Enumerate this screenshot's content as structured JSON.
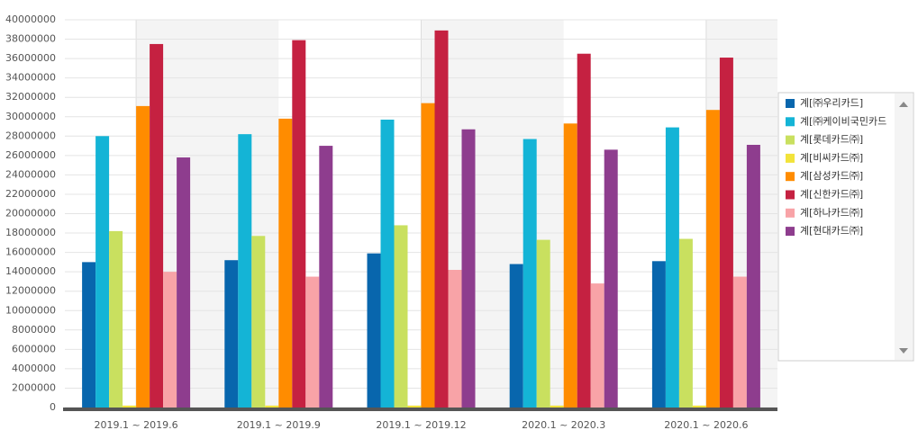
{
  "chart_data": {
    "type": "bar",
    "categories": [
      "2019.1 ~ 2019.6",
      "2019.1 ~ 2019.9",
      "2019.1 ~ 2019.12",
      "2020.1 ~ 2020.3",
      "2020.1 ~ 2020.6"
    ],
    "series": [
      {
        "name": "계[㈜우리카드]",
        "color": "#0866ad",
        "values": [
          15000000,
          15200000,
          15900000,
          14800000,
          15100000
        ]
      },
      {
        "name": "계[㈜케이비국민카드",
        "color": "#14b4d6",
        "values": [
          28000000,
          28200000,
          29700000,
          27700000,
          28900000
        ]
      },
      {
        "name": "계[롯데카드㈜]",
        "color": "#c9e05f",
        "values": [
          18200000,
          17700000,
          18800000,
          17300000,
          17400000
        ]
      },
      {
        "name": "계[비씨카드㈜]",
        "color": "#f2e33a",
        "values": [
          200000,
          200000,
          200000,
          200000,
          200000
        ]
      },
      {
        "name": "계[삼성카드㈜]",
        "color": "#ff8c00",
        "values": [
          31100000,
          29800000,
          31400000,
          29300000,
          30700000
        ]
      },
      {
        "name": "계[신한카드㈜]",
        "color": "#c52141",
        "values": [
          37500000,
          37900000,
          38900000,
          36500000,
          36100000
        ]
      },
      {
        "name": "계[하나카드㈜]",
        "color": "#f8a3a7",
        "values": [
          14000000,
          13500000,
          14200000,
          12800000,
          13500000
        ]
      },
      {
        "name": "계[현대카드㈜]",
        "color": "#8e3d8e",
        "values": [
          25800000,
          27000000,
          28700000,
          26600000,
          27100000
        ]
      }
    ],
    "ylim": [
      0,
      40000000
    ],
    "yticks": [
      0,
      2000000,
      4000000,
      6000000,
      8000000,
      10000000,
      12000000,
      14000000,
      16000000,
      18000000,
      20000000,
      22000000,
      24000000,
      26000000,
      28000000,
      30000000,
      32000000,
      34000000,
      36000000,
      38000000,
      40000000
    ],
    "grid": true
  }
}
